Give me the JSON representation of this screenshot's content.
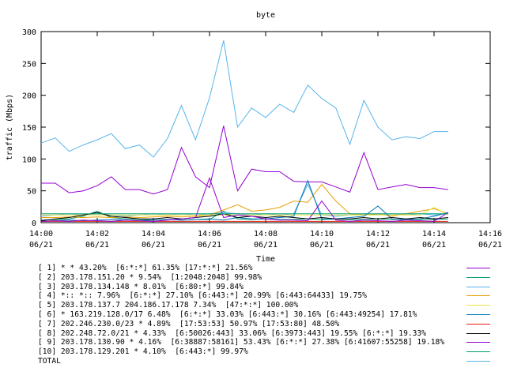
{
  "chart_data": {
    "type": "line",
    "title": "byte",
    "xlabel": "Time",
    "ylabel": "traffic (Mbps)",
    "ylim": [
      0,
      300
    ],
    "yticks": [
      0,
      50,
      100,
      150,
      200,
      250,
      300
    ],
    "xlim_minutes": [
      0,
      16
    ],
    "xticks": [
      {
        "minute": 0,
        "time": "14:00",
        "date": "06/21"
      },
      {
        "minute": 2,
        "time": "14:02",
        "date": "06/21"
      },
      {
        "minute": 4,
        "time": "14:04",
        "date": "06/21"
      },
      {
        "minute": 6,
        "time": "14:06",
        "date": "06/21"
      },
      {
        "minute": 8,
        "time": "14:08",
        "date": "06/21"
      },
      {
        "minute": 10,
        "time": "14:10",
        "date": "06/21"
      },
      {
        "minute": 12,
        "time": "14:12",
        "date": "06/21"
      },
      {
        "minute": 14,
        "time": "14:14",
        "date": "06/21"
      },
      {
        "minute": 16,
        "time": "14:16",
        "date": "06/21"
      }
    ],
    "x": [
      0,
      0.5,
      1,
      1.5,
      2,
      2.5,
      3,
      3.5,
      4,
      4.5,
      5,
      5.5,
      6,
      6.5,
      7,
      7.5,
      8,
      8.5,
      9,
      9.5,
      10,
      10.5,
      11,
      11.5,
      12,
      12.5,
      13,
      13.5,
      14,
      14.5
    ],
    "series": [
      {
        "name": "[ 1] * * 43.20%  [6:*:*] 61.35% [17:*:*] 21.56%",
        "color": "#9400d3",
        "values": [
          62,
          62,
          47,
          50,
          58,
          72,
          52,
          52,
          45,
          52,
          118,
          72,
          55,
          152,
          50,
          84,
          80,
          80,
          65,
          64,
          64,
          56,
          48,
          110,
          52,
          56,
          60,
          55,
          55,
          52
        ]
      },
      {
        "name": "[ 2] 203.178.151.20 * 9.54%  [1:2048:2048] 99.98%",
        "color": "#009e73",
        "values": [
          4,
          5,
          6,
          10,
          18,
          8,
          6,
          5,
          4,
          5,
          4,
          5,
          5,
          18,
          6,
          5,
          6,
          5,
          5,
          6,
          5,
          6,
          5,
          5,
          6,
          5,
          6,
          5,
          5,
          6
        ]
      },
      {
        "name": "[ 3] 203.178.134.148 * 8.01%  [6:80:*] 99.84%",
        "color": "#56b4e9",
        "values": [
          10,
          12,
          14,
          12,
          14,
          12,
          10,
          12,
          14,
          12,
          14,
          12,
          14,
          16,
          14,
          12,
          14,
          12,
          14,
          60,
          12,
          10,
          12,
          14,
          12,
          14,
          12,
          14,
          12,
          14
        ]
      },
      {
        "name": "[ 4] *:: *:: 7.96%  [6:*:*] 27.10% [6:443:*] 20.99% [6:443:64433] 19.75%",
        "color": "#e69f00",
        "values": [
          8,
          8,
          9,
          8,
          9,
          8,
          9,
          8,
          9,
          10,
          9,
          10,
          12,
          20,
          28,
          18,
          20,
          24,
          34,
          32,
          60,
          34,
          14,
          12,
          14,
          10,
          14,
          18,
          22,
          14
        ]
      },
      {
        "name": "[ 5] 203.178.137.7 204.186.17.178 7.34%  [47:*:*] 100.00%",
        "color": "#f0e442",
        "values": [
          12,
          12,
          12,
          12,
          12,
          12,
          12,
          12,
          12,
          12,
          12,
          12,
          12,
          12,
          12,
          12,
          12,
          12,
          12,
          12,
          12,
          12,
          12,
          12,
          12,
          12,
          12,
          12,
          24,
          12
        ]
      },
      {
        "name": "[ 6] * 163.219.128.0/17 6.48%  [6:*:*] 33.03% [6:443:*] 30.16% [6:443:49254] 17.81%",
        "color": "#0072b2",
        "values": [
          2,
          3,
          4,
          3,
          4,
          5,
          4,
          3,
          4,
          5,
          4,
          5,
          6,
          4,
          8,
          6,
          6,
          8,
          10,
          66,
          6,
          6,
          8,
          10,
          26,
          6,
          4,
          6,
          10,
          16
        ]
      },
      {
        "name": "[ 7] 202.246.230.0/23 * 4.89%  [17:53:53] 50.97% [17:53:80] 48.50%",
        "color": "#e51e10",
        "values": [
          2,
          2,
          2,
          2,
          2,
          2,
          2,
          2,
          2,
          2,
          2,
          2,
          2,
          2,
          2,
          2,
          2,
          2,
          2,
          2,
          2,
          2,
          2,
          2,
          2,
          2,
          2,
          2,
          2,
          2
        ]
      },
      {
        "name": "[ 8] 202.248.72.0/21 * 4.33%  [6:50026:443] 33.06% [6:3973:443] 19.55% [6:*:*] 19.33%",
        "color": "#000000",
        "values": [
          3,
          6,
          8,
          12,
          16,
          10,
          8,
          6,
          6,
          8,
          6,
          8,
          10,
          14,
          8,
          10,
          8,
          10,
          8,
          6,
          8,
          6,
          6,
          8,
          6,
          8,
          6,
          8,
          6,
          8
        ]
      },
      {
        "name": "[ 9] 203.178.130.90 * 4.16%  [6:38887:58161] 53.43% [6:*:*] 27.38% [6:41607:55258] 19.18%",
        "color": "#9400d3",
        "values": [
          2,
          3,
          2,
          4,
          3,
          2,
          4,
          3,
          2,
          4,
          6,
          8,
          70,
          8,
          12,
          10,
          6,
          4,
          4,
          3,
          34,
          4,
          2,
          4,
          3,
          2,
          4,
          3,
          2,
          16
        ]
      },
      {
        "name": "[10] 203.178.129.201 * 4.10%  [6:443:*] 99.97%",
        "color": "#009e73",
        "values": [
          14,
          14,
          14,
          14,
          14,
          14,
          14,
          14,
          14,
          14,
          14,
          14,
          14,
          14,
          14,
          14,
          14,
          14,
          14,
          14,
          14,
          14,
          14,
          14,
          14,
          14,
          14,
          14,
          14,
          14
        ]
      },
      {
        "name": "TOTAL",
        "color": "#56b4e9",
        "values": [
          125,
          133,
          112,
          122,
          130,
          140,
          116,
          122,
          103,
          132,
          184,
          130,
          196,
          286,
          150,
          180,
          165,
          186,
          173,
          216,
          195,
          180,
          123,
          192,
          150,
          130,
          135,
          132,
          143,
          143
        ]
      }
    ]
  }
}
